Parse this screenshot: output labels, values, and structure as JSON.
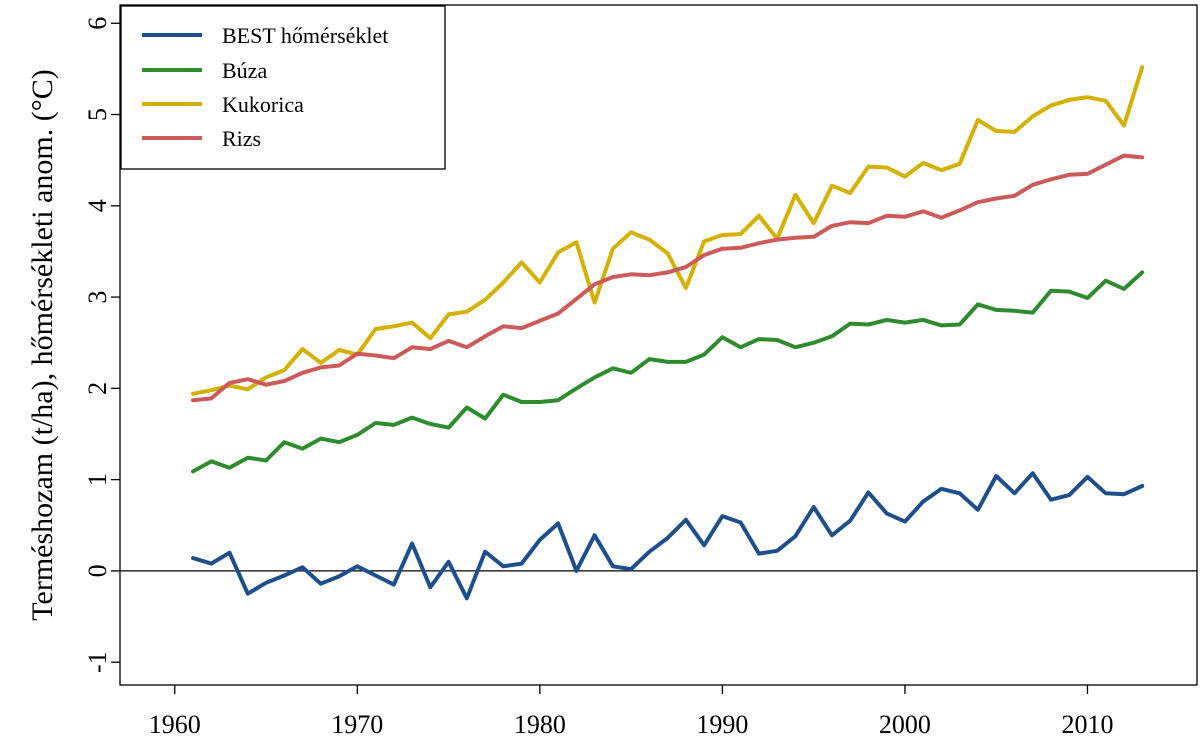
{
  "chart_data": {
    "type": "line",
    "title": "",
    "xlabel": "",
    "ylabel": "Terméshozam (t/ha), hőmérsékleti anom. (°C)",
    "xlim": [
      1957,
      2016
    ],
    "ylim": [
      -1.25,
      6.2
    ],
    "x_ticks": [
      1960,
      1970,
      1980,
      1990,
      2000,
      2010
    ],
    "y_ticks": [
      -1,
      0,
      1,
      2,
      3,
      4,
      5,
      6
    ],
    "x_tick_labels": [
      "1960",
      "1970",
      "1980",
      "1990",
      "2000",
      "2010"
    ],
    "y_tick_labels": [
      "-1",
      "0",
      "1",
      "2",
      "3",
      "4",
      "5",
      "6"
    ],
    "reference_line_y": 0,
    "legend_position": "top-left",
    "grid": false,
    "x": [
      1961,
      1962,
      1963,
      1964,
      1965,
      1966,
      1967,
      1968,
      1969,
      1970,
      1971,
      1972,
      1973,
      1974,
      1975,
      1976,
      1977,
      1978,
      1979,
      1980,
      1981,
      1982,
      1983,
      1984,
      1985,
      1986,
      1987,
      1988,
      1989,
      1990,
      1991,
      1992,
      1993,
      1994,
      1995,
      1996,
      1997,
      1998,
      1999,
      2000,
      2001,
      2002,
      2003,
      2004,
      2005,
      2006,
      2007,
      2008,
      2009,
      2010,
      2011,
      2012,
      2013
    ],
    "series": [
      {
        "name": "BEST hőmérséklet",
        "color": "#1f4e8c",
        "values": [
          0.14,
          0.08,
          0.2,
          -0.25,
          -0.13,
          -0.05,
          0.04,
          -0.14,
          -0.06,
          0.05,
          -0.05,
          -0.15,
          0.3,
          -0.18,
          0.1,
          -0.3,
          0.21,
          0.05,
          0.08,
          0.34,
          0.52,
          0.0,
          0.39,
          0.05,
          0.02,
          0.21,
          0.36,
          0.56,
          0.28,
          0.6,
          0.53,
          0.19,
          0.22,
          0.38,
          0.7,
          0.39,
          0.55,
          0.86,
          0.63,
          0.54,
          0.76,
          0.9,
          0.85,
          0.67,
          1.04,
          0.85,
          1.07,
          0.78,
          0.83,
          1.03,
          0.85,
          0.84,
          0.93
        ]
      },
      {
        "name": "Búza",
        "color": "#2e8b2e",
        "values": [
          1.09,
          1.2,
          1.13,
          1.24,
          1.21,
          1.41,
          1.34,
          1.45,
          1.41,
          1.49,
          1.62,
          1.6,
          1.68,
          1.61,
          1.57,
          1.79,
          1.67,
          1.93,
          1.85,
          1.85,
          1.87,
          2.0,
          2.12,
          2.22,
          2.17,
          2.32,
          2.29,
          2.29,
          2.37,
          2.56,
          2.45,
          2.54,
          2.53,
          2.45,
          2.5,
          2.57,
          2.71,
          2.7,
          2.75,
          2.72,
          2.75,
          2.69,
          2.7,
          2.92,
          2.86,
          2.85,
          2.83,
          3.07,
          3.06,
          2.99,
          3.18,
          3.09,
          3.27
        ]
      },
      {
        "name": "Kukorica",
        "color": "#d4b000",
        "values": [
          1.94,
          1.98,
          2.03,
          1.99,
          2.12,
          2.2,
          2.43,
          2.28,
          2.42,
          2.37,
          2.65,
          2.68,
          2.72,
          2.55,
          2.81,
          2.84,
          2.97,
          3.16,
          3.38,
          3.16,
          3.49,
          3.6,
          2.94,
          3.53,
          3.71,
          3.63,
          3.48,
          3.1,
          3.61,
          3.68,
          3.69,
          3.89,
          3.64,
          4.12,
          3.81,
          4.22,
          4.14,
          4.43,
          4.42,
          4.32,
          4.47,
          4.39,
          4.46,
          4.94,
          4.82,
          4.81,
          4.98,
          5.1,
          5.16,
          5.19,
          5.15,
          4.88,
          5.52
        ]
      },
      {
        "name": "Rizs",
        "color": "#cc5a5a",
        "values": [
          1.87,
          1.89,
          2.06,
          2.1,
          2.04,
          2.08,
          2.17,
          2.23,
          2.25,
          2.38,
          2.36,
          2.33,
          2.45,
          2.43,
          2.52,
          2.45,
          2.57,
          2.68,
          2.66,
          2.74,
          2.82,
          2.98,
          3.14,
          3.22,
          3.25,
          3.24,
          3.27,
          3.33,
          3.46,
          3.53,
          3.54,
          3.59,
          3.63,
          3.65,
          3.66,
          3.78,
          3.82,
          3.81,
          3.89,
          3.88,
          3.94,
          3.87,
          3.95,
          4.04,
          4.08,
          4.11,
          4.23,
          4.29,
          4.34,
          4.35,
          4.45,
          4.55,
          4.53
        ]
      }
    ]
  }
}
